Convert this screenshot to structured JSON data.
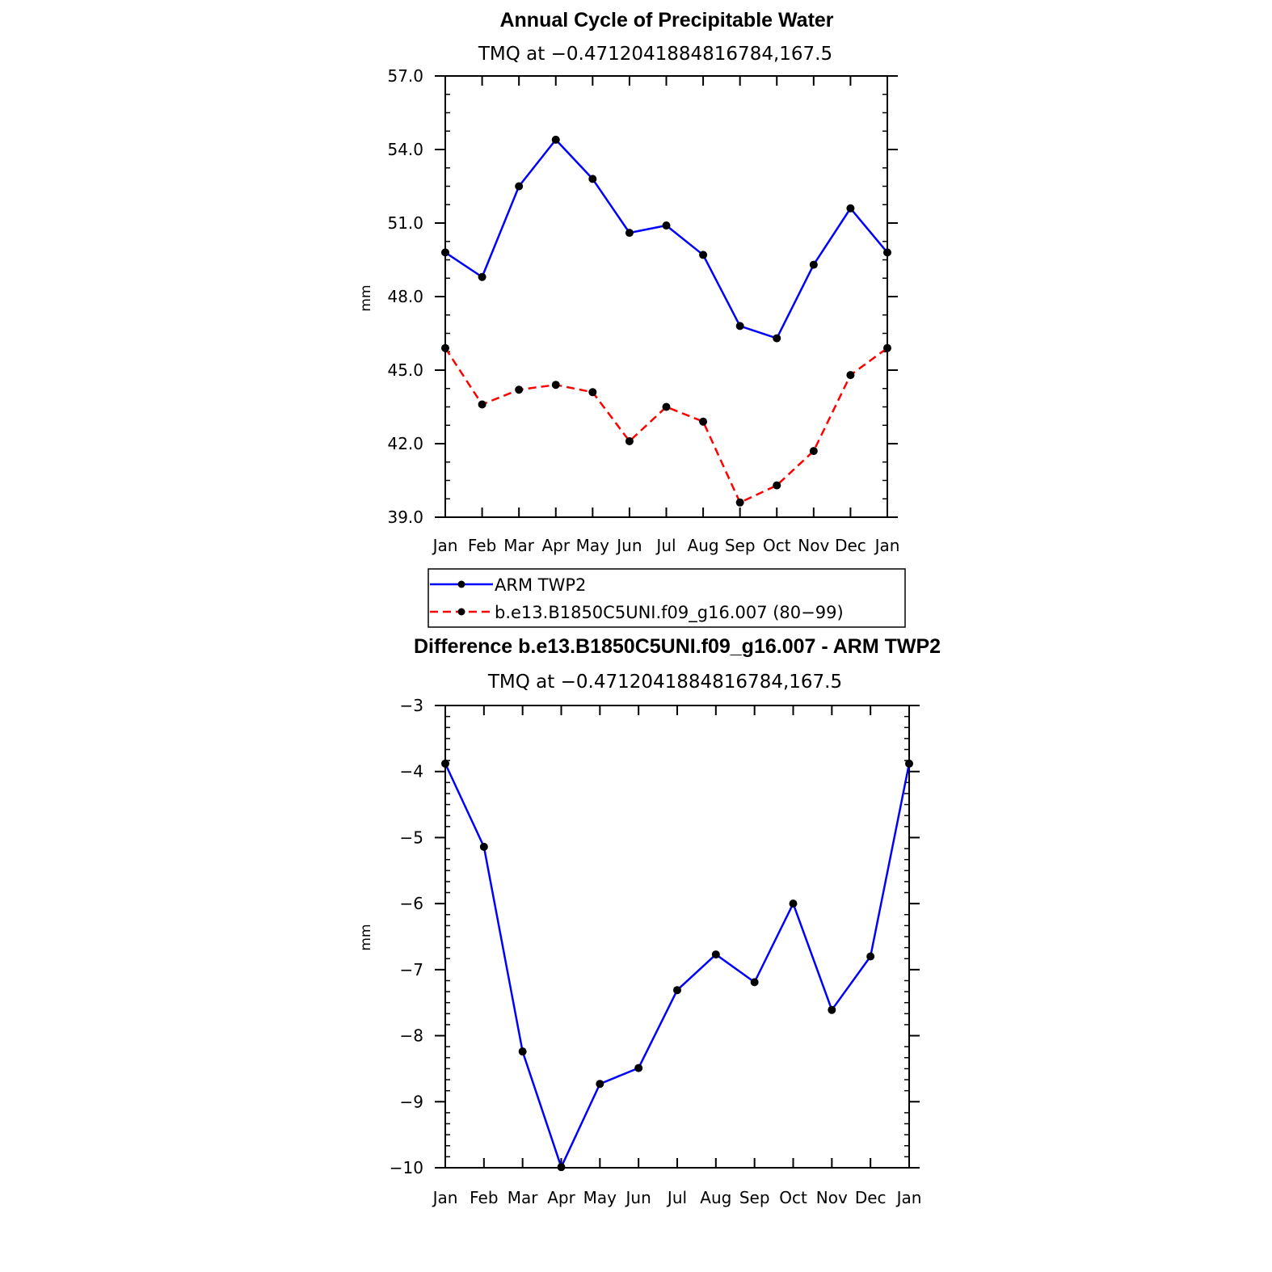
{
  "charts": [
    {
      "type": "line",
      "title": "Annual Cycle of Precipitable Water",
      "subtitle": "TMQ at −0.4712041884816784,167.5",
      "ylabel": "mm",
      "categories": [
        "Jan",
        "Feb",
        "Mar",
        "Apr",
        "May",
        "Jun",
        "Jul",
        "Aug",
        "Sep",
        "Oct",
        "Nov",
        "Dec",
        "Jan"
      ],
      "ylim": [
        39.0,
        57.0
      ],
      "yticks": [
        39.0,
        42.0,
        45.0,
        48.0,
        51.0,
        54.0,
        57.0
      ],
      "ytick_labels": [
        "39.0",
        "42.0",
        "45.0",
        "48.0",
        "51.0",
        "54.0",
        "57.0"
      ],
      "series": [
        {
          "name": "ARM TWP2",
          "color": "#0000ff",
          "dashed": false,
          "values": [
            49.8,
            48.8,
            52.5,
            54.4,
            52.8,
            50.6,
            50.9,
            49.7,
            46.8,
            46.3,
            49.3,
            51.6,
            49.8
          ]
        },
        {
          "name": "b.e13.B1850C5UNI.f09_g16.007 (80−99)",
          "color": "#ff0000",
          "dashed": true,
          "values": [
            45.9,
            43.6,
            44.2,
            44.4,
            44.1,
            42.1,
            43.5,
            42.9,
            39.6,
            40.3,
            41.7,
            44.8,
            45.9
          ]
        }
      ]
    },
    {
      "type": "line",
      "title": "Difference b.e13.B1850C5UNI.f09_g16.007 - ARM TWP2",
      "subtitle": "TMQ at −0.4712041884816784,167.5",
      "ylabel": "mm",
      "categories": [
        "Jan",
        "Feb",
        "Mar",
        "Apr",
        "May",
        "Jun",
        "Jul",
        "Aug",
        "Sep",
        "Oct",
        "Nov",
        "Dec",
        "Jan"
      ],
      "ylim": [
        -10,
        -3
      ],
      "yticks": [
        -10,
        -9,
        -8,
        -7,
        -6,
        -5,
        -4,
        -3
      ],
      "ytick_labels": [
        "−10",
        "−9",
        "−8",
        "−7",
        "−6",
        "−5",
        "−4",
        "−3"
      ],
      "series": [
        {
          "name": "difference",
          "color": "#0000ff",
          "dashed": false,
          "values": [
            -3.88,
            -5.14,
            -8.24,
            -9.99,
            -8.73,
            -8.49,
            -7.31,
            -6.77,
            -7.19,
            -6.0,
            -7.61,
            -6.8,
            -3.88
          ]
        }
      ]
    }
  ],
  "chart_data": [
    {
      "type": "line",
      "title": "Annual Cycle of Precipitable Water",
      "subtitle": "TMQ at −0.4712041884816784,167.5",
      "ylabel": "mm",
      "categories": [
        "Jan",
        "Feb",
        "Mar",
        "Apr",
        "May",
        "Jun",
        "Jul",
        "Aug",
        "Sep",
        "Oct",
        "Nov",
        "Dec",
        "Jan"
      ],
      "ylim": [
        39.0,
        57.0
      ],
      "series": [
        {
          "name": "ARM TWP2",
          "values": [
            49.8,
            48.8,
            52.5,
            54.4,
            52.8,
            50.6,
            50.9,
            49.7,
            46.8,
            46.3,
            49.3,
            51.6,
            49.8
          ]
        },
        {
          "name": "b.e13.B1850C5UNI.f09_g16.007 (80−99)",
          "values": [
            45.9,
            43.6,
            44.2,
            44.4,
            44.1,
            42.1,
            43.5,
            42.9,
            39.6,
            40.3,
            41.7,
            44.8,
            45.9
          ]
        }
      ],
      "legend": "below"
    },
    {
      "type": "line",
      "title": "Difference b.e13.B1850C5UNI.f09_g16.007 - ARM TWP2",
      "subtitle": "TMQ at −0.4712041884816784,167.5",
      "ylabel": "mm",
      "categories": [
        "Jan",
        "Feb",
        "Mar",
        "Apr",
        "May",
        "Jun",
        "Jul",
        "Aug",
        "Sep",
        "Oct",
        "Nov",
        "Dec",
        "Jan"
      ],
      "ylim": [
        -10,
        -3
      ],
      "series": [
        {
          "name": "difference",
          "values": [
            -3.88,
            -5.14,
            -8.24,
            -9.99,
            -8.73,
            -8.49,
            -7.31,
            -6.77,
            -7.19,
            -6.0,
            -7.61,
            -6.8,
            -3.88
          ]
        }
      ]
    }
  ]
}
